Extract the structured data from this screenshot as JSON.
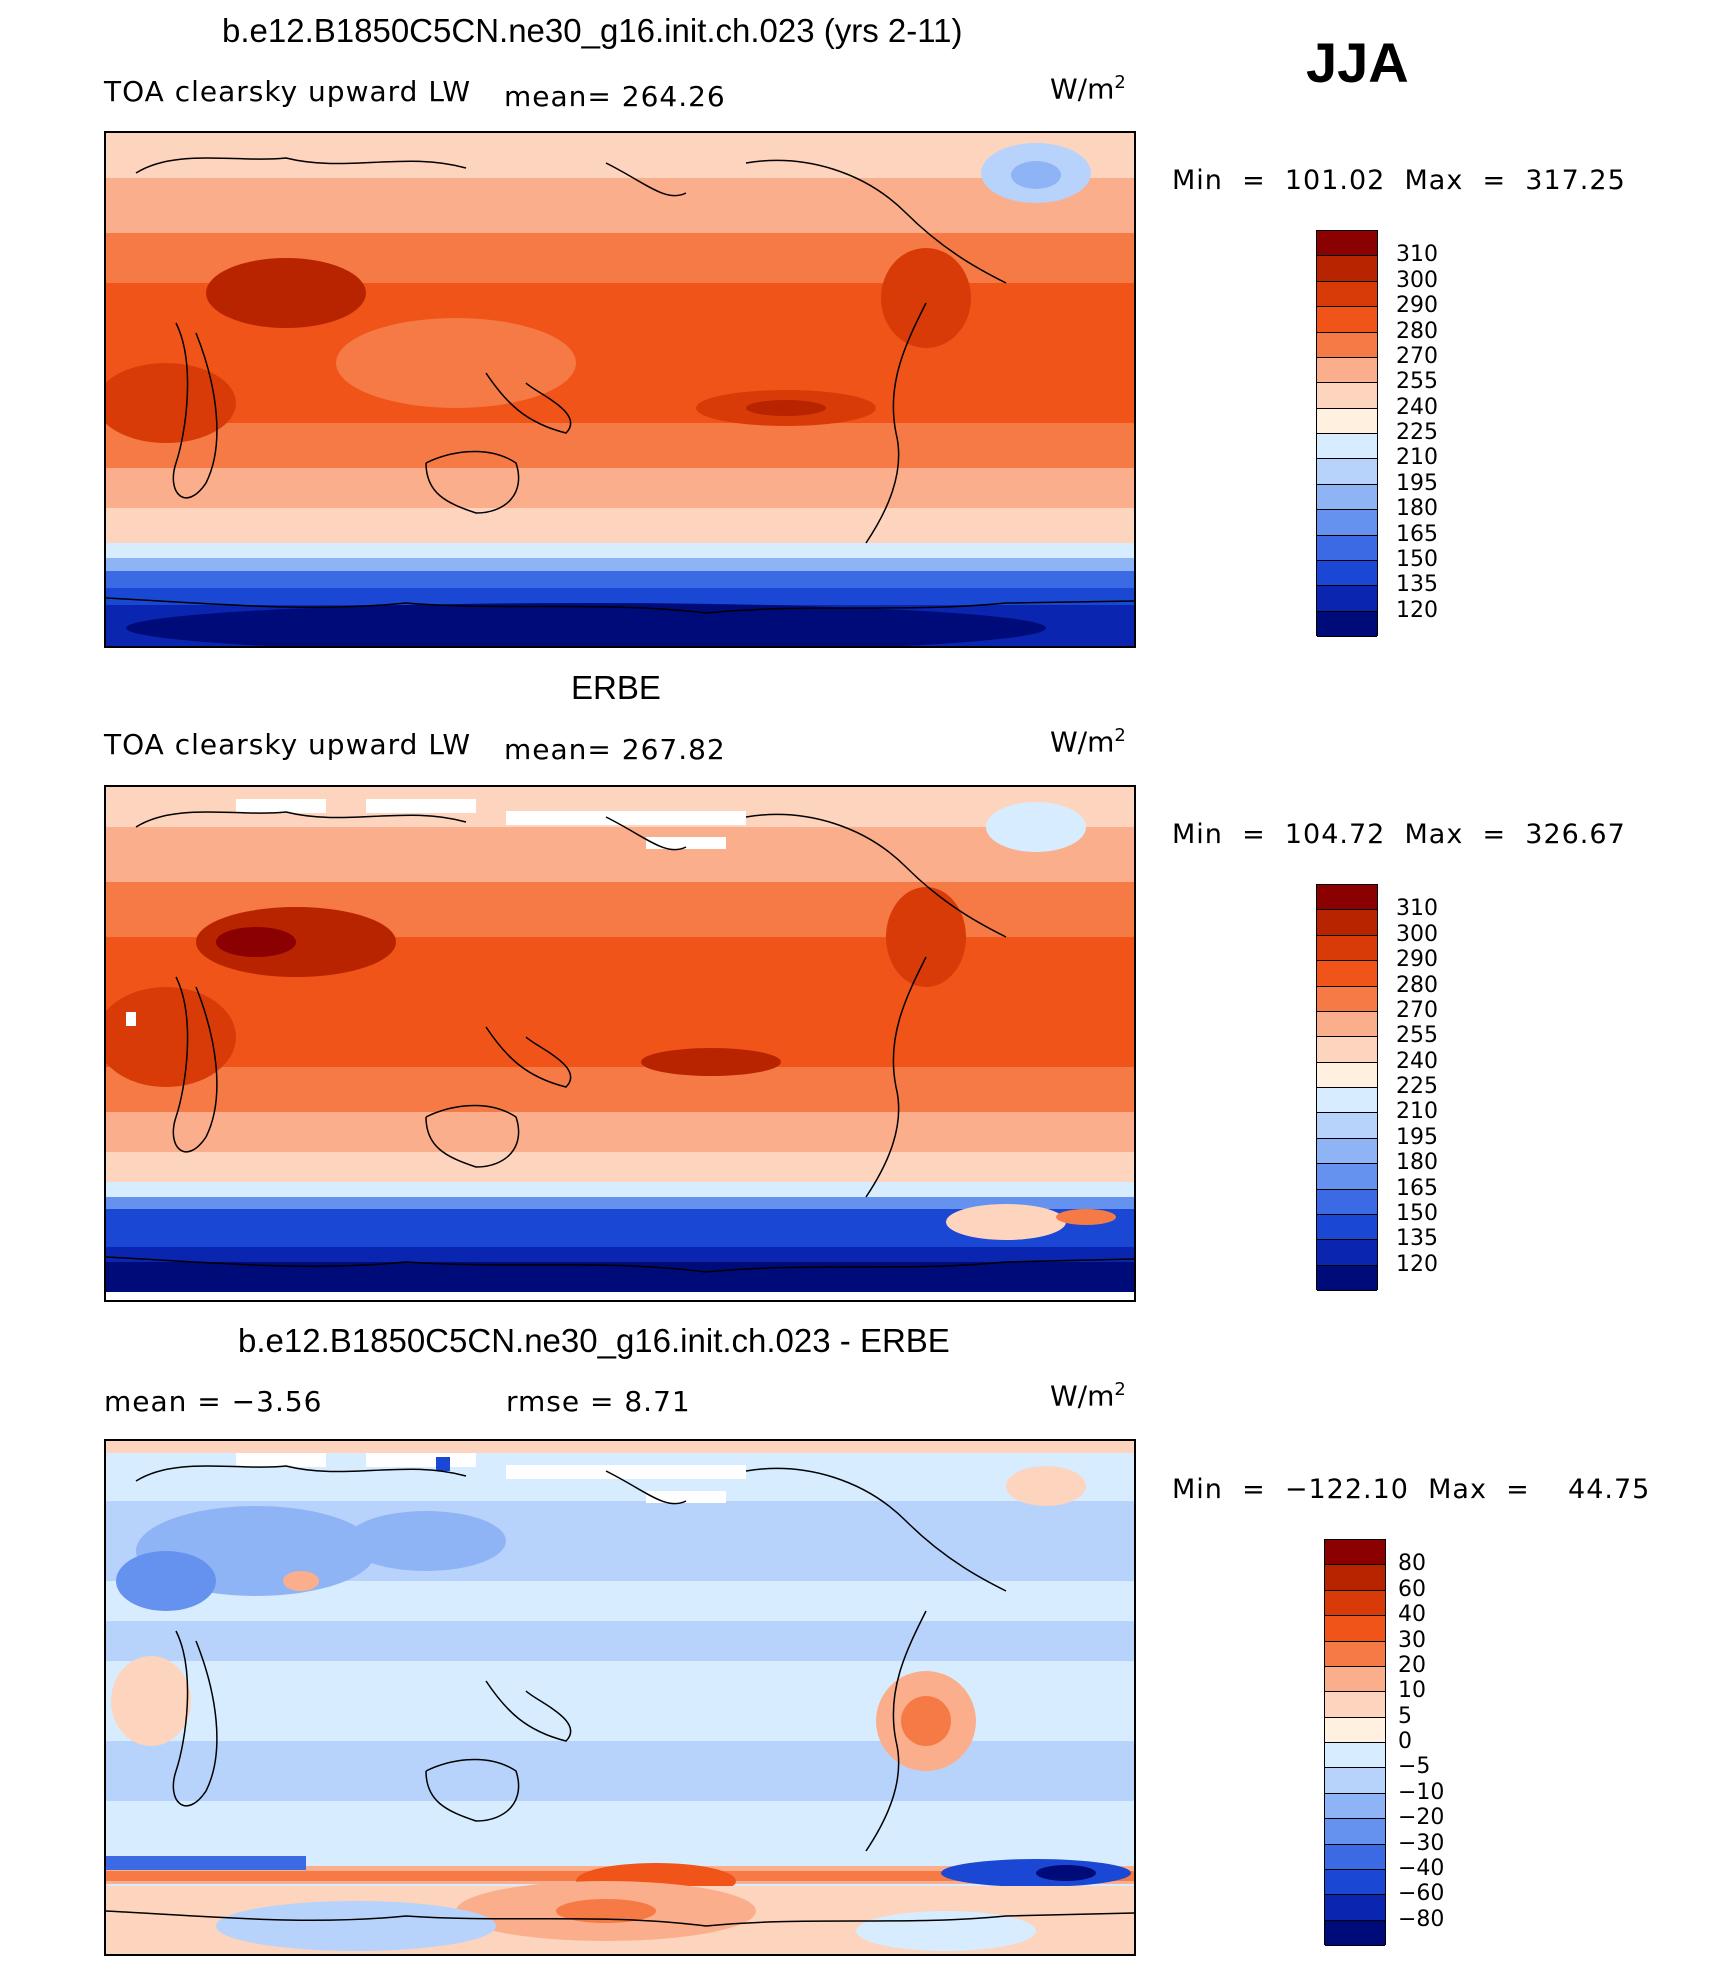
{
  "season": "JJA",
  "panels": [
    {
      "title": "b.e12.B1850C5CN.ne30_g16.init.ch.023 (yrs 2-11)",
      "variable": "TOA clearsky upward LW",
      "stat": "mean=  264.26",
      "units": "W/m",
      "units_sup": "2",
      "minmax": "Min  =  101.02  Max  =  317.25"
    },
    {
      "title": "ERBE",
      "variable": "TOA clearsky upward LW",
      "stat": "mean=  267.82",
      "units": "W/m",
      "units_sup": "2",
      "minmax": "Min  =  104.72  Max  =  326.67"
    },
    {
      "title": "b.e12.B1850C5CN.ne30_g16.init.ch.023 - ERBE",
      "mean_label": "mean  =    −3.56",
      "rmse_label": "rmse  =     8.71",
      "units": "W/m",
      "units_sup": "2",
      "minmax": "Min  =  −122.10  Max  =    44.75"
    }
  ],
  "colorbars": {
    "absolute": {
      "labels": [
        "310",
        "300",
        "290",
        "280",
        "270",
        "255",
        "240",
        "225",
        "210",
        "195",
        "180",
        "165",
        "150",
        "135",
        "120"
      ],
      "colors": [
        "#8b0000",
        "#b82300",
        "#d83b08",
        "#f05418",
        "#f57a45",
        "#fbae8c",
        "#fdd4bd",
        "#fff0e0",
        "#d8ecff",
        "#b7d3fb",
        "#8eb4f5",
        "#6592ee",
        "#3c6ae4",
        "#1a47d4",
        "#0a25b0",
        "#000b7a"
      ]
    },
    "difference": {
      "labels": [
        "80",
        "60",
        "40",
        "30",
        "20",
        "10",
        "5",
        "0",
        "−5",
        "−10",
        "−20",
        "−30",
        "−40",
        "−60",
        "−80"
      ],
      "colors": [
        "#8b0000",
        "#b82300",
        "#d83b08",
        "#f05418",
        "#f57a45",
        "#fbae8c",
        "#fdd4bd",
        "#fff0e0",
        "#d8ecff",
        "#b7d3fb",
        "#8eb4f5",
        "#6592ee",
        "#3c6ae4",
        "#1a47d4",
        "#0a25b0",
        "#000b7a"
      ]
    }
  }
}
